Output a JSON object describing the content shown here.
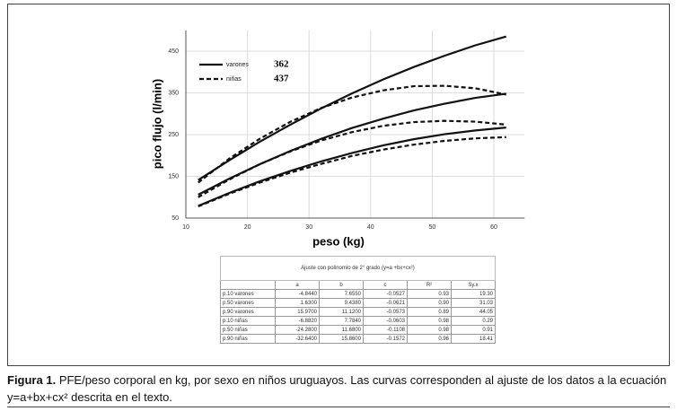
{
  "chart_data": {
    "type": "line",
    "x_label": "peso (kg)",
    "y_label": "pico flujo (l/min)",
    "x": [
      12,
      17,
      22,
      27,
      32,
      37,
      42,
      47,
      52,
      57,
      62
    ],
    "xlim": [
      10,
      65
    ],
    "xticks": [
      10,
      20,
      30,
      40,
      50,
      60
    ],
    "ylim": [
      50,
      500
    ],
    "yticks": [
      50,
      150,
      250,
      350,
      450
    ],
    "grid": true,
    "legend": [
      {
        "label": "varones",
        "count": "362",
        "style": "solid"
      },
      {
        "label": "niñas",
        "count": "437",
        "style": "dashed"
      }
    ],
    "series": [
      {
        "name": "p.10 varones",
        "color": "#111",
        "style": "solid",
        "values": [
          79,
          110,
          138,
          163,
          186,
          206,
          224,
          239,
          251,
          260,
          267
        ]
      },
      {
        "name": "p.50 varones",
        "color": "#111",
        "style": "solid",
        "values": [
          106,
          144,
          179,
          211,
          240,
          266,
          288,
          308,
          324,
          338,
          348
        ]
      },
      {
        "name": "p.90 varones",
        "color": "#111",
        "style": "solid",
        "values": [
          141,
          188,
          233,
          274,
          313,
          349,
          382,
          412,
          439,
          464,
          485
        ]
      },
      {
        "name": "p.10 niñas",
        "color": "#111",
        "style": "dashed",
        "values": [
          78,
          108,
          135,
          159,
          180,
          199,
          214,
          226,
          235,
          241,
          244
        ]
      },
      {
        "name": "p.50 niñas",
        "color": "#111",
        "style": "dashed",
        "values": [
          100,
          142,
          179,
          210,
          236,
          256,
          271,
          280,
          283,
          281,
          274
        ]
      },
      {
        "name": "p.90 niñas",
        "color": "#111",
        "style": "dashed",
        "values": [
          135,
          192,
          240,
          281,
          314,
          339,
          356,
          366,
          367,
          361,
          346
        ]
      }
    ]
  },
  "table": {
    "title": "Ajuste con polinomio de 2° grado (y=a +bx+cx²)",
    "header": [
      "a",
      "b",
      "c",
      "R²",
      "Sy.x"
    ],
    "rows": [
      [
        "p.10 varones",
        "-4.8440",
        "7.6550",
        "-0.0527",
        "0.93",
        "19.30"
      ],
      [
        "p.50 varones",
        "1.6300",
        "9.4380",
        "-0.0621",
        "0.90",
        "31.03"
      ],
      [
        "p.90 varones",
        "15.9700",
        "11.1200",
        "-0.0573",
        "0.89",
        "44.05"
      ],
      [
        "p.10 niñas",
        "-6.8820",
        "7.7840",
        "-0.0603",
        "0.98",
        "0.29"
      ],
      [
        "p.50 niñas",
        "-24.2800",
        "11.6800",
        "-0.1108",
        "0.98",
        "0.91"
      ],
      [
        "p.90 niñas",
        "-32.6400",
        "15.8600",
        "-0.1572",
        "0.96",
        "18.41"
      ]
    ]
  },
  "caption": {
    "label": "Figura 1.",
    "text": "PFE/peso corporal en kg, por sexo en niños uruguayos. Las curvas corresponden al ajuste de los datos a la ecuación y=a+bx+cx² descrita en el texto."
  }
}
